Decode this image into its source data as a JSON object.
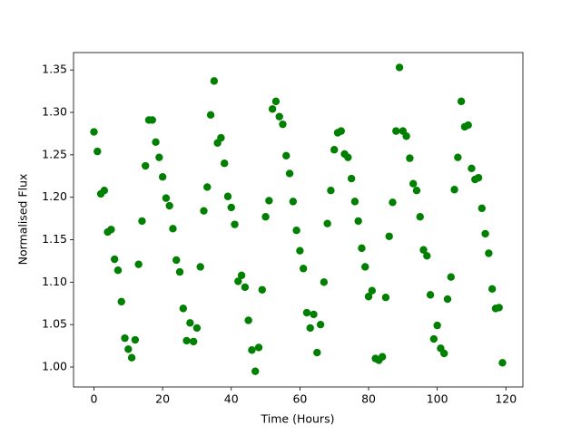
{
  "chart_data": {
    "type": "scatter",
    "x_label": "Time (Hours)",
    "y_label": "Normalised Flux",
    "color": "#008000",
    "xlim": [
      -5.95,
      124.95
    ],
    "ylim": [
      0.9765,
      1.3705
    ],
    "xticks": [
      0,
      20,
      40,
      60,
      80,
      100,
      120
    ],
    "yticks": [
      {
        "value": 1.0,
        "label": "1.00"
      },
      1.05,
      {
        "value": 1.1,
        "label": "1.10"
      },
      1.15,
      {
        "value": 1.2,
        "label": "1.20"
      },
      1.25,
      {
        "value": 1.3,
        "label": "1.30"
      },
      1.35
    ],
    "grid": false,
    "x": [
      0,
      1,
      2,
      3,
      4,
      5,
      6,
      7,
      8,
      9,
      10,
      11,
      12,
      13,
      14,
      15,
      16,
      17,
      18,
      19,
      20,
      21,
      22,
      23,
      24,
      25,
      26,
      27,
      28,
      29,
      30,
      31,
      32,
      33,
      34,
      35,
      36,
      37,
      38,
      39,
      40,
      41,
      42,
      43,
      44,
      45,
      46,
      47,
      48,
      49,
      50,
      51,
      52,
      53,
      54,
      55,
      56,
      57,
      58,
      59,
      60,
      61,
      62,
      63,
      64,
      65,
      66,
      67,
      68,
      69,
      70,
      71,
      72,
      73,
      74,
      75,
      76,
      77,
      78,
      79,
      80,
      81,
      82,
      83,
      84,
      85,
      86,
      87,
      88,
      89,
      90,
      91,
      92,
      93,
      94,
      95,
      96,
      97,
      98,
      99,
      100,
      101,
      102,
      103,
      104,
      105,
      106,
      107,
      108,
      109,
      110,
      111,
      112,
      113,
      114,
      115,
      116,
      117,
      118,
      119
    ],
    "values": [
      1.277,
      1.254,
      1.204,
      1.208,
      1.159,
      1.162,
      1.127,
      1.114,
      1.077,
      1.034,
      1.021,
      1.011,
      1.032,
      1.121,
      1.172,
      1.237,
      1.291,
      1.291,
      1.265,
      1.247,
      1.224,
      1.199,
      1.19,
      1.163,
      1.126,
      1.112,
      1.069,
      1.031,
      1.052,
      1.03,
      1.046,
      1.118,
      1.184,
      1.212,
      1.297,
      1.337,
      1.264,
      1.27,
      1.24,
      1.201,
      1.188,
      1.168,
      1.101,
      1.108,
      1.094,
      1.055,
      1.02,
      0.995,
      1.023,
      1.091,
      1.177,
      1.196,
      1.304,
      1.313,
      1.295,
      1.286,
      1.249,
      1.228,
      1.195,
      1.161,
      1.137,
      1.116,
      1.064,
      1.046,
      1.062,
      1.017,
      1.05,
      1.1,
      1.169,
      1.208,
      1.256,
      1.276,
      1.278,
      1.251,
      1.247,
      1.222,
      1.195,
      1.172,
      1.14,
      1.118,
      1.083,
      1.09,
      1.01,
      1.008,
      1.012,
      1.082,
      1.154,
      1.194,
      1.278,
      1.353,
      1.278,
      1.272,
      1.246,
      1.216,
      1.208,
      1.177,
      1.138,
      1.131,
      1.085,
      1.033,
      1.049,
      1.022,
      1.016,
      1.08,
      1.106,
      1.209,
      1.247,
      1.313,
      1.283,
      1.285,
      1.234,
      1.221,
      1.223,
      1.187,
      1.157,
      1.134,
      1.092,
      1.069,
      1.07,
      1.005
    ]
  }
}
